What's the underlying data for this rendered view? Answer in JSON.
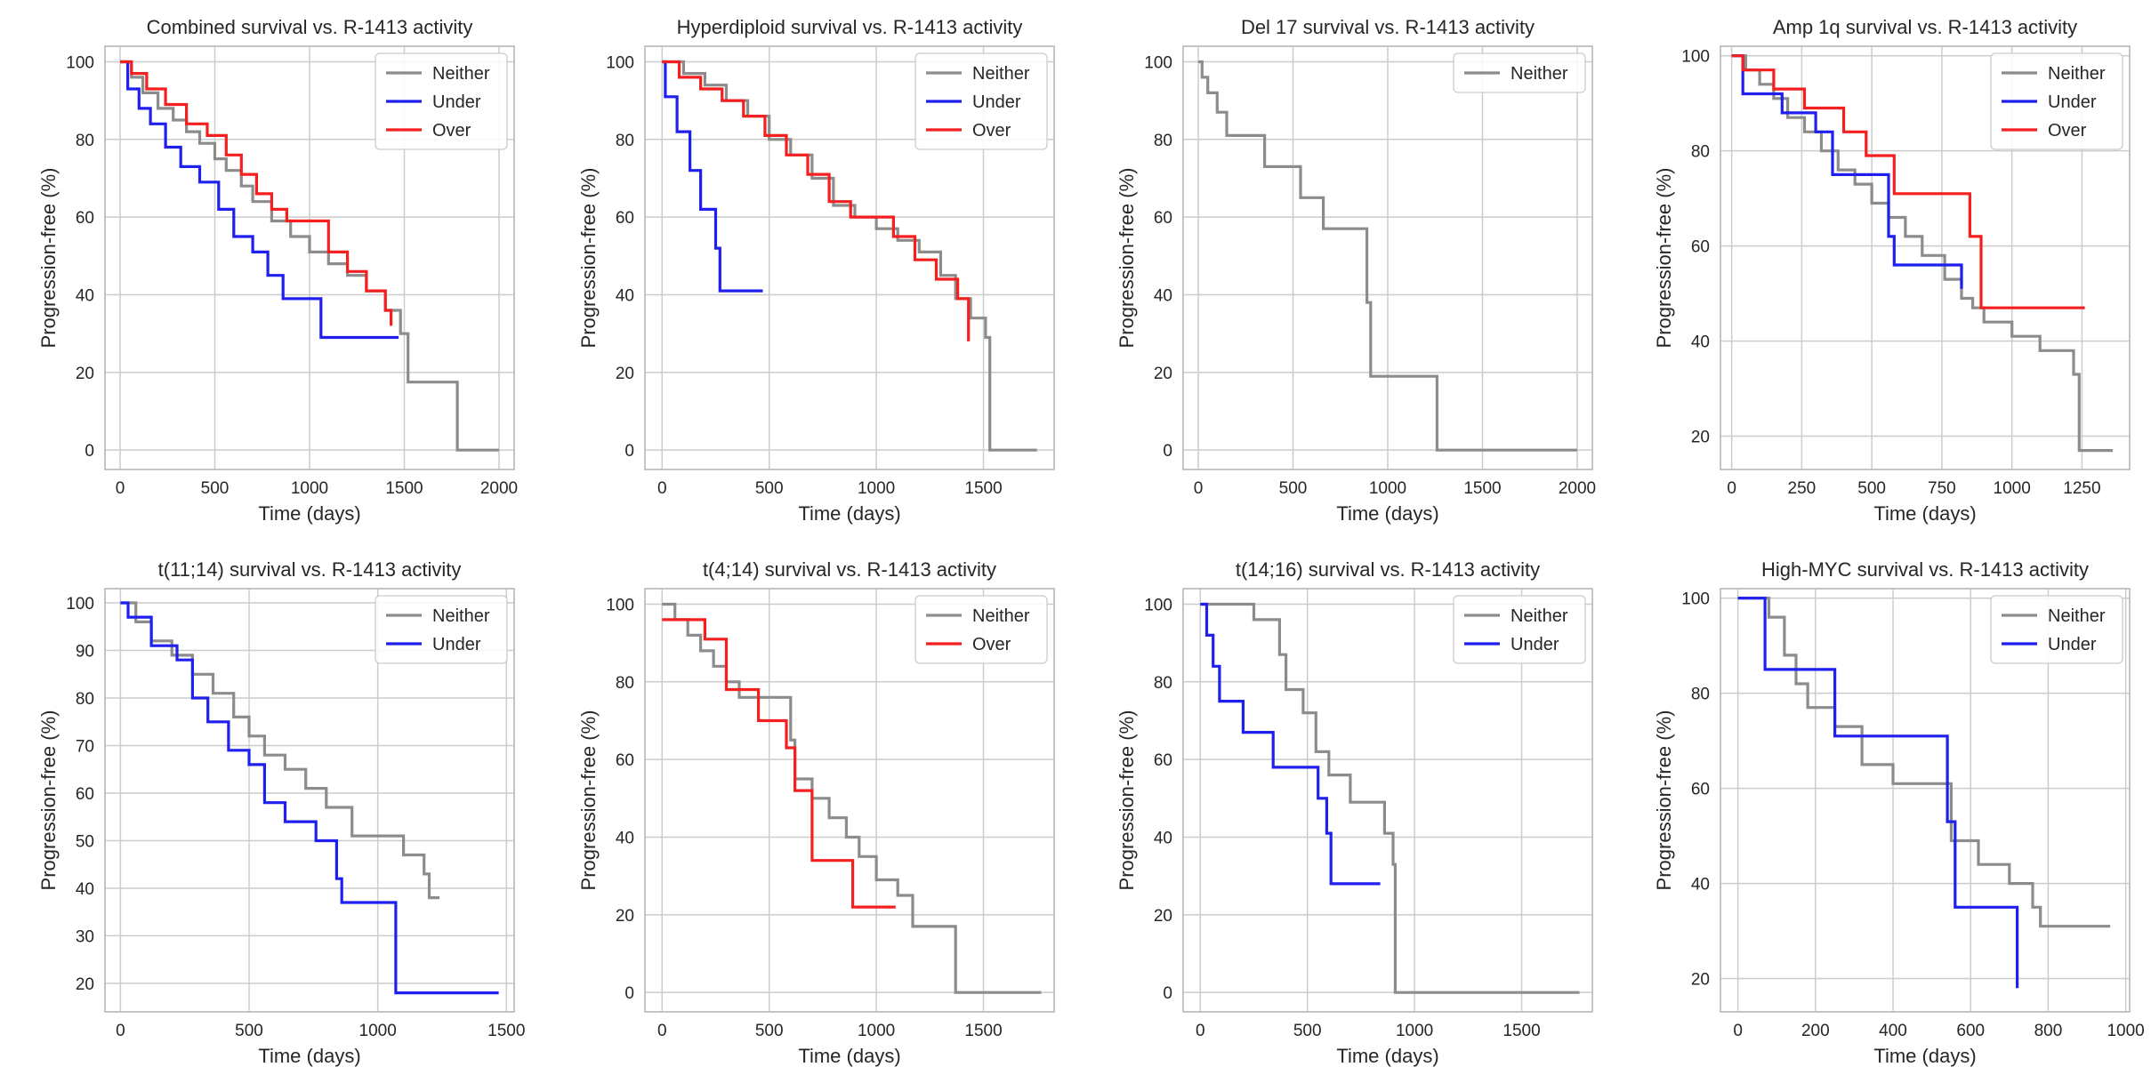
{
  "colors": {
    "Neither": "#8c8c8c",
    "Under": "#1f1fef",
    "Over": "#f41f1f",
    "grid": "#cccccc",
    "frame": "#bfbfbf"
  },
  "chart_data": [
    {
      "type": "line",
      "step": true,
      "title": "Combined survival vs. R-1413 activity",
      "xlabel": "Time (days)",
      "ylabel": "Progression-free (%)",
      "xlim": [
        -80,
        2080
      ],
      "ylim": [
        -5,
        104
      ],
      "xticks": [
        0,
        500,
        1000,
        1500,
        2000
      ],
      "xtick_labels": [
        "0",
        "500",
        "1000",
        "1500",
        "2000"
      ],
      "yticks": [
        0,
        20,
        40,
        60,
        80,
        100
      ],
      "ytick_labels": [
        "0",
        "20",
        "40",
        "60",
        "80",
        "100"
      ],
      "legend": "top-right",
      "series": [
        {
          "name": "Neither",
          "x": [
            0,
            60,
            120,
            200,
            280,
            350,
            420,
            500,
            560,
            640,
            700,
            800,
            900,
            1000,
            1100,
            1200,
            1300,
            1400,
            1480,
            1520,
            1760,
            1780,
            2000
          ],
          "y": [
            100,
            96,
            92,
            88,
            85,
            82,
            79,
            75,
            72,
            68,
            64,
            59,
            55,
            51,
            48,
            45,
            41,
            36,
            30,
            17.5,
            17.5,
            0,
            0
          ]
        },
        {
          "name": "Under",
          "x": [
            0,
            40,
            100,
            160,
            240,
            320,
            420,
            520,
            600,
            700,
            780,
            860,
            1060,
            1470
          ],
          "y": [
            100,
            93,
            88,
            84,
            78,
            73,
            69,
            62,
            55,
            51,
            45,
            39,
            29,
            29
          ]
        },
        {
          "name": "Over",
          "x": [
            0,
            60,
            140,
            240,
            350,
            460,
            560,
            640,
            720,
            800,
            880,
            1100,
            1200,
            1300,
            1400,
            1430
          ],
          "y": [
            100,
            97,
            93,
            89,
            84,
            81,
            76,
            71,
            66,
            62,
            59,
            51,
            46,
            41,
            36,
            32
          ]
        }
      ]
    },
    {
      "type": "line",
      "step": true,
      "title": "Hyperdiploid survival vs. R-1413 activity",
      "xlabel": "Time (days)",
      "ylabel": "Progression-free (%)",
      "xlim": [
        -80,
        1830
      ],
      "ylim": [
        -5,
        104
      ],
      "xticks": [
        0,
        500,
        1000,
        1500
      ],
      "xtick_labels": [
        "0",
        "500",
        "1000",
        "1500"
      ],
      "yticks": [
        0,
        20,
        40,
        60,
        80,
        100
      ],
      "ytick_labels": [
        "0",
        "20",
        "40",
        "60",
        "80",
        "100"
      ],
      "legend": "top-right",
      "series": [
        {
          "name": "Neither",
          "x": [
            0,
            100,
            200,
            300,
            400,
            500,
            600,
            700,
            800,
            900,
            1000,
            1100,
            1200,
            1300,
            1370,
            1440,
            1510,
            1530,
            1750
          ],
          "y": [
            100,
            97,
            94,
            90,
            86,
            80,
            76,
            70,
            63,
            60,
            57,
            54,
            51,
            45,
            39,
            34,
            29,
            0,
            0
          ]
        },
        {
          "name": "Under",
          "x": [
            0,
            15,
            70,
            130,
            180,
            250,
            270,
            470
          ],
          "y": [
            100,
            91,
            82,
            72,
            62,
            52,
            41,
            41
          ]
        },
        {
          "name": "Over",
          "x": [
            0,
            80,
            180,
            280,
            380,
            480,
            580,
            680,
            780,
            880,
            1080,
            1180,
            1280,
            1380,
            1430
          ],
          "y": [
            100,
            96,
            93,
            90,
            86,
            81,
            76,
            71,
            64,
            60,
            55,
            49,
            44,
            39,
            28
          ]
        }
      ]
    },
    {
      "type": "line",
      "step": true,
      "title": "Del 17 survival vs. R-1413 activity",
      "xlabel": "Time (days)",
      "ylabel": "Progression-free (%)",
      "xlim": [
        -80,
        2080
      ],
      "ylim": [
        -5,
        104
      ],
      "xticks": [
        0,
        500,
        1000,
        1500,
        2000
      ],
      "xtick_labels": [
        "0",
        "500",
        "1000",
        "1500",
        "2000"
      ],
      "yticks": [
        0,
        20,
        40,
        60,
        80,
        100
      ],
      "ytick_labels": [
        "0",
        "20",
        "40",
        "60",
        "80",
        "100"
      ],
      "legend": "top-right",
      "series": [
        {
          "name": "Neither",
          "x": [
            0,
            20,
            50,
            100,
            150,
            350,
            540,
            660,
            890,
            910,
            1260,
            2000
          ],
          "y": [
            100,
            96,
            92,
            87,
            81,
            73,
            65,
            57,
            38,
            19,
            0,
            0
          ]
        }
      ]
    },
    {
      "type": "line",
      "step": true,
      "title": "Amp 1q survival vs. R-1413 activity",
      "xlabel": "Time (days)",
      "ylabel": "Progression-free (%)",
      "xlim": [
        -40,
        1420
      ],
      "ylim": [
        13,
        102
      ],
      "xticks": [
        0,
        250,
        500,
        750,
        1000,
        1250
      ],
      "xtick_labels": [
        "0",
        "250",
        "500",
        "750",
        "1000",
        "1250"
      ],
      "yticks": [
        20,
        40,
        60,
        80,
        100
      ],
      "ytick_labels": [
        "20",
        "40",
        "60",
        "80",
        "100"
      ],
      "legend": "top-right",
      "series": [
        {
          "name": "Neither",
          "x": [
            0,
            50,
            100,
            150,
            200,
            260,
            320,
            380,
            440,
            500,
            560,
            620,
            680,
            760,
            820,
            860,
            900,
            1000,
            1100,
            1220,
            1240,
            1360
          ],
          "y": [
            100,
            97,
            94,
            91,
            87,
            84,
            80,
            76,
            73,
            69,
            66,
            62,
            58,
            53,
            49,
            47,
            44,
            41,
            38,
            33,
            17,
            17
          ]
        },
        {
          "name": "Under",
          "x": [
            0,
            40,
            180,
            300,
            360,
            560,
            580,
            820
          ],
          "y": [
            100,
            92,
            88,
            84,
            75,
            62,
            56,
            51
          ]
        },
        {
          "name": "Over",
          "x": [
            0,
            40,
            150,
            260,
            400,
            480,
            580,
            850,
            890,
            1260
          ],
          "y": [
            100,
            97,
            93,
            89,
            84,
            79,
            71,
            62,
            47,
            47
          ]
        }
      ]
    },
    {
      "type": "line",
      "step": true,
      "title": "t(11;14) survival vs. R-1413 activity",
      "xlabel": "Time (days)",
      "ylabel": "Progression-free (%)",
      "xlim": [
        -60,
        1530
      ],
      "ylim": [
        14,
        103
      ],
      "xticks": [
        0,
        500,
        1000,
        1500
      ],
      "xtick_labels": [
        "0",
        "500",
        "1000",
        "1500"
      ],
      "yticks": [
        20,
        30,
        40,
        50,
        60,
        70,
        80,
        90,
        100
      ],
      "ytick_labels": [
        "20",
        "30",
        "40",
        "50",
        "60",
        "70",
        "80",
        "90",
        "100"
      ],
      "legend": "top-right",
      "series": [
        {
          "name": "Neither",
          "x": [
            0,
            60,
            120,
            200,
            280,
            360,
            440,
            500,
            560,
            640,
            720,
            800,
            900,
            1100,
            1180,
            1200,
            1240
          ],
          "y": [
            100,
            96,
            92,
            89,
            85,
            81,
            76,
            72,
            68,
            65,
            61,
            57,
            51,
            47,
            43,
            38,
            38
          ]
        },
        {
          "name": "Under",
          "x": [
            0,
            30,
            120,
            220,
            280,
            340,
            420,
            500,
            560,
            640,
            760,
            840,
            860,
            1070,
            1470
          ],
          "y": [
            100,
            97,
            91,
            88,
            80,
            75,
            69,
            66,
            58,
            54,
            50,
            42,
            37,
            18,
            18
          ]
        }
      ]
    },
    {
      "type": "line",
      "step": true,
      "title": "t(4;14) survival vs. R-1413 activity",
      "xlabel": "Time (days)",
      "ylabel": "Progression-free (%)",
      "xlim": [
        -80,
        1830
      ],
      "ylim": [
        -5,
        104
      ],
      "xticks": [
        0,
        500,
        1000,
        1500
      ],
      "xtick_labels": [
        "0",
        "500",
        "1000",
        "1500"
      ],
      "yticks": [
        0,
        20,
        40,
        60,
        80,
        100
      ],
      "ytick_labels": [
        "0",
        "20",
        "40",
        "60",
        "80",
        "100"
      ],
      "legend": "top-right",
      "series": [
        {
          "name": "Neither",
          "x": [
            0,
            60,
            120,
            180,
            240,
            300,
            360,
            600,
            620,
            700,
            780,
            860,
            920,
            1000,
            1100,
            1170,
            1370,
            1770
          ],
          "y": [
            100,
            96,
            92,
            88,
            84,
            80,
            76,
            65,
            55,
            50,
            45,
            40,
            35,
            29,
            25,
            17,
            0,
            0
          ]
        },
        {
          "name": "Over",
          "x": [
            0,
            200,
            300,
            450,
            580,
            620,
            700,
            890,
            1090
          ],
          "y": [
            96,
            91,
            78,
            70,
            63,
            52,
            34,
            22,
            22
          ]
        }
      ]
    },
    {
      "type": "line",
      "step": true,
      "title": "t(14;16) survival vs. R-1413 activity",
      "xlabel": "Time (days)",
      "ylabel": "Progression-free (%)",
      "xlim": [
        -80,
        1830
      ],
      "ylim": [
        -5,
        104
      ],
      "xticks": [
        0,
        500,
        1000,
        1500
      ],
      "xtick_labels": [
        "0",
        "500",
        "1000",
        "1500"
      ],
      "yticks": [
        0,
        20,
        40,
        60,
        80,
        100
      ],
      "ytick_labels": [
        "0",
        "20",
        "40",
        "60",
        "80",
        "100"
      ],
      "legend": "top-right",
      "series": [
        {
          "name": "Neither",
          "x": [
            0,
            250,
            370,
            400,
            480,
            540,
            600,
            700,
            860,
            900,
            910,
            1770
          ],
          "y": [
            100,
            96,
            87,
            78,
            72,
            62,
            56,
            49,
            41,
            33,
            0,
            0
          ]
        },
        {
          "name": "Under",
          "x": [
            0,
            30,
            60,
            90,
            200,
            340,
            550,
            590,
            610,
            840
          ],
          "y": [
            100,
            92,
            84,
            75,
            67,
            58,
            50,
            41,
            28,
            28
          ]
        }
      ]
    },
    {
      "type": "line",
      "step": true,
      "title": "High-MYC survival vs. R-1413 activity",
      "xlabel": "Time (days)",
      "ylabel": "Progression-free (%)",
      "xlim": [
        -45,
        1010
      ],
      "ylim": [
        13,
        102
      ],
      "xticks": [
        0,
        200,
        400,
        600,
        800,
        1000
      ],
      "xtick_labels": [
        "0",
        "200",
        "400",
        "600",
        "800",
        "1000"
      ],
      "yticks": [
        20,
        40,
        60,
        80,
        100
      ],
      "ytick_labels": [
        "20",
        "40",
        "60",
        "80",
        "100"
      ],
      "legend": "top-right",
      "series": [
        {
          "name": "Neither",
          "x": [
            0,
            80,
            120,
            150,
            180,
            250,
            320,
            400,
            550,
            620,
            700,
            760,
            780,
            960
          ],
          "y": [
            100,
            96,
            88,
            82,
            77,
            73,
            65,
            61,
            49,
            44,
            40,
            35,
            31,
            31
          ]
        },
        {
          "name": "Under",
          "x": [
            0,
            70,
            250,
            540,
            560,
            720
          ],
          "y": [
            100,
            85,
            71,
            53,
            35,
            18
          ]
        }
      ]
    }
  ]
}
